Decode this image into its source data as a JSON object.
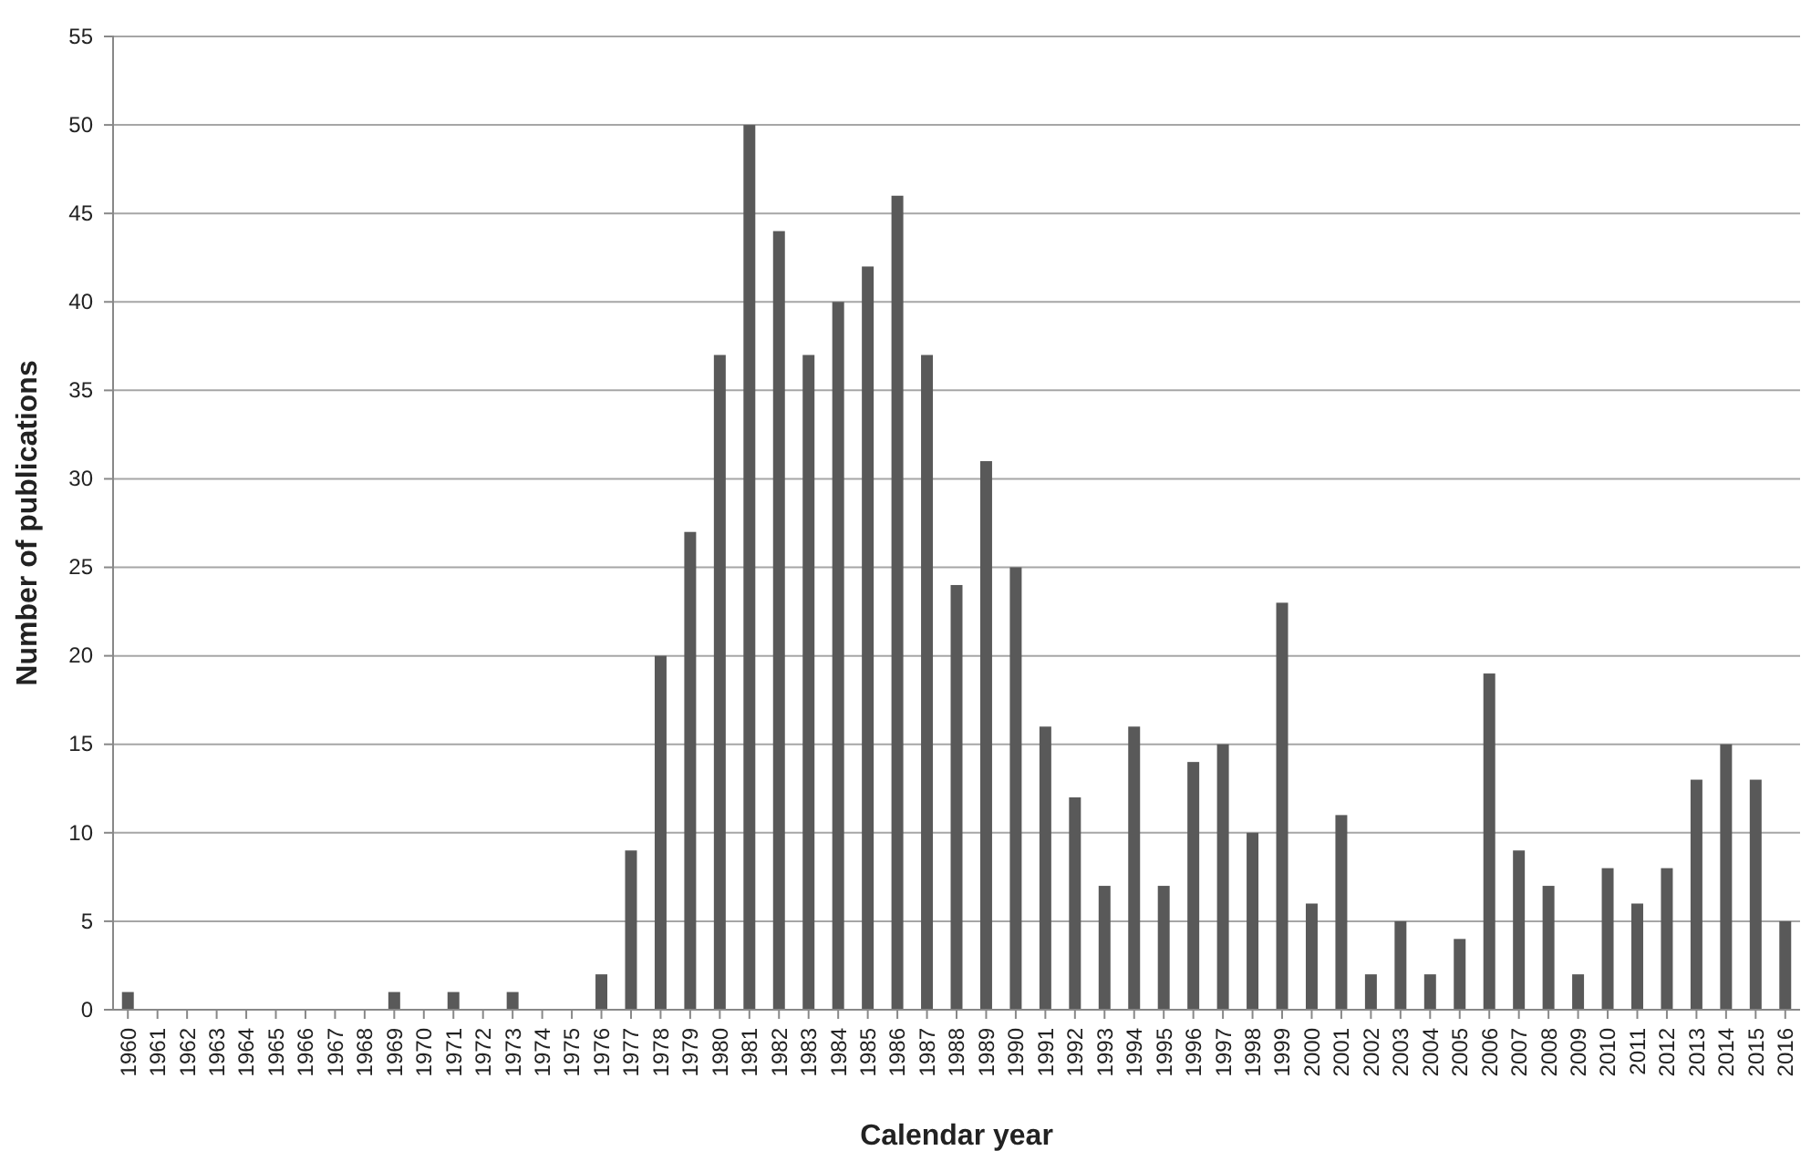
{
  "chart_data": {
    "type": "bar",
    "xlabel": "Calendar year",
    "ylabel": "Number of publications",
    "categories": [
      "1960",
      "1961",
      "1962",
      "1963",
      "1964",
      "1965",
      "1966",
      "1967",
      "1968",
      "1969",
      "1970",
      "1971",
      "1972",
      "1973",
      "1974",
      "1975",
      "1976",
      "1977",
      "1978",
      "1979",
      "1980",
      "1981",
      "1982",
      "1983",
      "1984",
      "1985",
      "1986",
      "1987",
      "1988",
      "1989",
      "1990",
      "1991",
      "1992",
      "1993",
      "1994",
      "1995",
      "1996",
      "1997",
      "1998",
      "1999",
      "2000",
      "2001",
      "2002",
      "2003",
      "2004",
      "2005",
      "2006",
      "2007",
      "2008",
      "2009",
      "2010",
      "2011",
      "2012",
      "2013",
      "2014",
      "2015",
      "2016"
    ],
    "values": [
      1,
      0,
      0,
      0,
      0,
      0,
      0,
      0,
      0,
      1,
      0,
      1,
      0,
      1,
      0,
      0,
      2,
      9,
      20,
      27,
      37,
      50,
      44,
      37,
      40,
      42,
      46,
      37,
      24,
      31,
      25,
      16,
      12,
      7,
      16,
      7,
      14,
      15,
      10,
      23,
      6,
      11,
      2,
      5,
      2,
      4,
      19,
      9,
      7,
      2,
      8,
      6,
      8,
      13,
      15,
      13,
      5
    ],
    "color": "#595959",
    "ylim": [
      0,
      55
    ],
    "yticks": [
      0,
      5,
      10,
      15,
      20,
      25,
      30,
      35,
      40,
      45,
      50,
      55
    ],
    "grid": "y"
  }
}
